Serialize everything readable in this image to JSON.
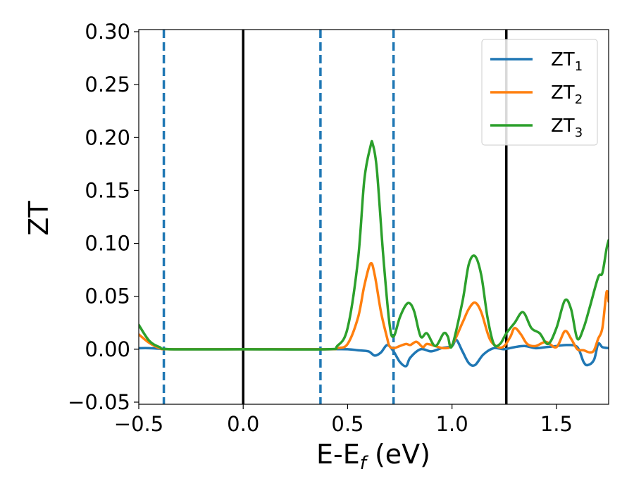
{
  "chart_data": {
    "type": "line",
    "xlabel": {
      "main": "E-E",
      "sub": "f",
      "unit": " (eV)"
    },
    "ylabel": "ZT",
    "xlim": [
      -0.5,
      1.75
    ],
    "ylim": [
      -0.052,
      0.302
    ],
    "xticks": [
      -0.5,
      0.0,
      0.5,
      1.0,
      1.5
    ],
    "xtick_labels": [
      "−0.5",
      "0.0",
      "0.5",
      "1.0",
      "1.5"
    ],
    "yticks": [
      -0.05,
      0.0,
      0.05,
      0.1,
      0.15,
      0.2,
      0.25,
      0.3
    ],
    "ytick_labels": [
      "−0.05",
      "0.00",
      "0.05",
      "0.10",
      "0.15",
      "0.20",
      "0.25",
      "0.30"
    ],
    "grid": false,
    "legend_position": "top-right",
    "vlines": [
      {
        "x": -0.38,
        "style": "dashed",
        "color": "#1f77b4"
      },
      {
        "x": 0.0,
        "style": "solid",
        "color": "#000000"
      },
      {
        "x": 0.37,
        "style": "dashed",
        "color": "#1f77b4"
      },
      {
        "x": 0.72,
        "style": "dashed",
        "color": "#1f77b4"
      },
      {
        "x": 1.26,
        "style": "solid",
        "color": "#000000"
      }
    ],
    "series": [
      {
        "name": "ZT",
        "sub": "1",
        "color": "#1f77b4",
        "x": [
          -0.5,
          -0.45,
          -0.4,
          -0.35,
          -0.2,
          0.0,
          0.2,
          0.4,
          0.5,
          0.55,
          0.6,
          0.63,
          0.66,
          0.69,
          0.72,
          0.75,
          0.78,
          0.8,
          0.85,
          0.9,
          0.95,
          1.0,
          1.02,
          1.05,
          1.08,
          1.11,
          1.15,
          1.2,
          1.25,
          1.3,
          1.35,
          1.4,
          1.45,
          1.5,
          1.55,
          1.6,
          1.63,
          1.65,
          1.68,
          1.7,
          1.72,
          1.75
        ],
        "y": [
          0.001,
          0.001,
          0.0005,
          0.0,
          0.0,
          0.0,
          0.0,
          0.0,
          0.0,
          -0.001,
          -0.002,
          -0.006,
          -0.003,
          0.004,
          -0.002,
          -0.012,
          -0.016,
          -0.008,
          0.0,
          -0.002,
          0.001,
          0.003,
          0.009,
          -0.002,
          -0.013,
          -0.015,
          -0.005,
          0.001,
          0.0,
          0.002,
          0.003,
          0.001,
          0.002,
          0.003,
          0.004,
          0.002,
          -0.012,
          -0.015,
          -0.01,
          0.005,
          0.002,
          0.001
        ]
      },
      {
        "name": "ZT",
        "sub": "2",
        "color": "#ff7f0e",
        "x": [
          -0.5,
          -0.45,
          -0.4,
          -0.35,
          0.0,
          0.4,
          0.45,
          0.5,
          0.55,
          0.58,
          0.61,
          0.63,
          0.66,
          0.69,
          0.7,
          0.72,
          0.75,
          0.78,
          0.8,
          0.83,
          0.86,
          0.88,
          0.92,
          0.96,
          1.0,
          1.05,
          1.08,
          1.11,
          1.14,
          1.18,
          1.22,
          1.25,
          1.28,
          1.3,
          1.33,
          1.36,
          1.4,
          1.45,
          1.5,
          1.54,
          1.57,
          1.6,
          1.63,
          1.66,
          1.68,
          1.7,
          1.72,
          1.74,
          1.75
        ],
        "y": [
          0.014,
          0.006,
          0.001,
          0.0,
          0.0,
          0.0,
          0.001,
          0.005,
          0.03,
          0.06,
          0.081,
          0.07,
          0.035,
          0.01,
          0.003,
          0.001,
          0.003,
          0.005,
          0.004,
          0.007,
          0.002,
          0.005,
          0.003,
          0.001,
          0.004,
          0.025,
          0.038,
          0.044,
          0.035,
          0.01,
          0.002,
          0.003,
          0.012,
          0.02,
          0.014,
          0.005,
          0.003,
          0.007,
          0.002,
          0.017,
          0.01,
          0.0,
          -0.001,
          -0.003,
          -0.001,
          0.01,
          0.02,
          0.054,
          0.045
        ]
      },
      {
        "name": "ZT",
        "sub": "3",
        "color": "#2ca02c",
        "x": [
          -0.5,
          -0.45,
          -0.4,
          -0.35,
          0.0,
          0.4,
          0.45,
          0.5,
          0.55,
          0.58,
          0.61,
          0.62,
          0.64,
          0.67,
          0.7,
          0.72,
          0.75,
          0.78,
          0.8,
          0.82,
          0.85,
          0.88,
          0.92,
          0.96,
          0.98,
          1.0,
          1.05,
          1.08,
          1.11,
          1.14,
          1.17,
          1.2,
          1.23,
          1.26,
          1.3,
          1.34,
          1.38,
          1.42,
          1.46,
          1.5,
          1.54,
          1.57,
          1.6,
          1.63,
          1.66,
          1.7,
          1.72,
          1.74,
          1.75
        ],
        "y": [
          0.023,
          0.008,
          0.002,
          0.0,
          0.0,
          0.0,
          0.003,
          0.02,
          0.085,
          0.16,
          0.192,
          0.194,
          0.17,
          0.09,
          0.025,
          0.012,
          0.03,
          0.042,
          0.043,
          0.035,
          0.012,
          0.015,
          0.003,
          0.015,
          0.012,
          0.003,
          0.045,
          0.08,
          0.088,
          0.07,
          0.03,
          0.005,
          0.005,
          0.015,
          0.025,
          0.035,
          0.02,
          0.015,
          0.005,
          0.02,
          0.046,
          0.038,
          0.01,
          0.02,
          0.04,
          0.068,
          0.072,
          0.095,
          0.103
        ]
      }
    ]
  }
}
